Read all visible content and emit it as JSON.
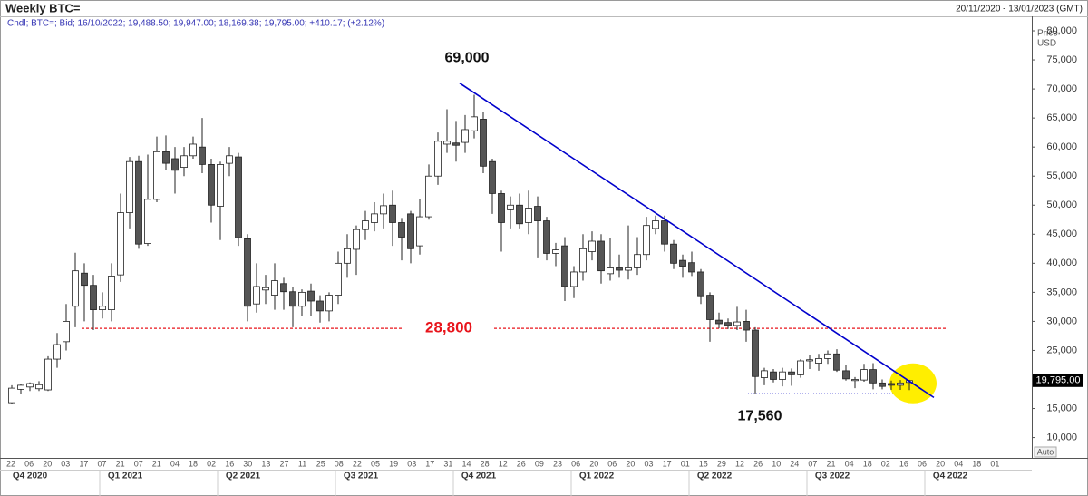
{
  "chart_data": {
    "type": "candlestick",
    "title": "Weekly BTC=",
    "date_range": "20/11/2020 - 13/01/2023 (GMT)",
    "subtitle": "Cndl; BTC=; Bid; 16/10/2022; 19,488.50; 19,947.00; 18,169.38; 19,795.00; +410.17; (+2.12%)",
    "y_axis_label": [
      "Price",
      "USD"
    ],
    "scale_mode": "Auto",
    "up_color": "#ffffff",
    "down_color": "#555555",
    "ylim": [
      6500,
      82500
    ],
    "yticks": [
      {
        "value": 10000,
        "label": "10,000"
      },
      {
        "value": 15000,
        "label": "15,000"
      },
      {
        "value": 20000,
        "label": "20,000"
      },
      {
        "value": 25000,
        "label": "25,000"
      },
      {
        "value": 30000,
        "label": "30,000"
      },
      {
        "value": 35000,
        "label": "35,000"
      },
      {
        "value": 40000,
        "label": "40,000"
      },
      {
        "value": 45000,
        "label": "45,000"
      },
      {
        "value": 50000,
        "label": "50,000"
      },
      {
        "value": 55000,
        "label": "55,000"
      },
      {
        "value": 60000,
        "label": "60,000"
      },
      {
        "value": 65000,
        "label": "65,000"
      },
      {
        "value": 70000,
        "label": "70,000"
      },
      {
        "value": 75000,
        "label": "75,000"
      },
      {
        "value": 80000,
        "label": "80,000"
      }
    ],
    "week_labels": [
      "22",
      "06",
      "20",
      "03",
      "17",
      "07",
      "21",
      "07",
      "21",
      "04",
      "18",
      "02",
      "16",
      "30",
      "13",
      "27",
      "11",
      "25",
      "08",
      "22",
      "05",
      "19",
      "03",
      "17",
      "31",
      "14",
      "28",
      "12",
      "26",
      "09",
      "23",
      "06",
      "20",
      "06",
      "20",
      "03",
      "17",
      "01",
      "15",
      "29",
      "12",
      "26",
      "10",
      "24",
      "07",
      "21",
      "04",
      "18",
      "02",
      "16",
      "06",
      "20",
      "04",
      "18",
      "01"
    ],
    "quarter_labels": [
      "Q4 2020",
      "Q1 2021",
      "Q2 2021",
      "Q3 2021",
      "Q4 2021",
      "Q1 2022",
      "Q2 2022",
      "Q3 2022",
      "Q4 2022"
    ],
    "open": [
      16000,
      18300,
      18700,
      18400,
      18200,
      23500,
      26500,
      32600,
      38300,
      36200,
      32000,
      32000,
      38000,
      48700,
      57500,
      43400,
      51000,
      59200,
      58000,
      56500,
      58500,
      60000,
      57000,
      49800,
      57200,
      58300,
      44200,
      33000,
      35400,
      34500,
      36500,
      35100,
      32600,
      35200,
      33500,
      31800,
      34500,
      40000,
      42400,
      45800,
      47000,
      48500,
      50000,
      47000,
      48500,
      43000,
      48000,
      55000,
      60500,
      60700,
      60800,
      62800,
      64800,
      57500,
      52000,
      49200,
      50000,
      47000,
      49800,
      47300,
      41700,
      43000,
      36000,
      38500,
      42000,
      43800,
      38200,
      39200,
      38800,
      39200,
      41500,
      46000,
      47300,
      43300,
      40500,
      40100,
      38500,
      34500,
      30200,
      29800,
      29300,
      30000,
      28500,
      20300,
      21300,
      20000,
      21300,
      20800,
      23200,
      22800,
      23600,
      24400,
      21500,
      19800,
      19900,
      21700,
      19400,
      19300,
      19000,
      19488.5
    ],
    "high": [
      19000,
      19300,
      19500,
      19700,
      24000,
      28000,
      33000,
      41800,
      40000,
      38000,
      35000,
      40000,
      52000,
      58300,
      58500,
      58700,
      61800,
      62000,
      60000,
      60000,
      61800,
      65000,
      58000,
      57500,
      60000,
      59000,
      45000,
      40000,
      38000,
      40000,
      37500,
      36000,
      35500,
      36500,
      34500,
      35000,
      42000,
      45000,
      46500,
      49000,
      50500,
      52000,
      52500,
      47800,
      49000,
      51000,
      57000,
      62500,
      66500,
      64500,
      65500,
      69000,
      66000,
      58000,
      52500,
      51500,
      52000,
      52500,
      51500,
      48000,
      43500,
      44500,
      39500,
      45000,
      45500,
      45000,
      44300,
      41500,
      46500,
      44500,
      48000,
      48200,
      48200,
      44000,
      41500,
      42000,
      39000,
      35000,
      31500,
      30500,
      32500,
      32000,
      29000,
      22000,
      21800,
      22000,
      21900,
      23500,
      24200,
      24400,
      25000,
      25200,
      22500,
      20400,
      22700,
      22800,
      20000,
      19800,
      19900,
      19947
    ],
    "low": [
      15700,
      17500,
      18000,
      18000,
      18000,
      22000,
      25000,
      29000,
      30000,
      28500,
      30500,
      30000,
      36800,
      46000,
      42500,
      43000,
      50500,
      56000,
      52000,
      55000,
      58000,
      55500,
      47000,
      44000,
      55000,
      43000,
      30000,
      31500,
      33000,
      32000,
      32000,
      29000,
      31000,
      31000,
      29800,
      30000,
      33000,
      37500,
      38000,
      44000,
      45500,
      46000,
      43000,
      40500,
      40000,
      41500,
      47500,
      53500,
      59000,
      57500,
      59000,
      61500,
      55500,
      48500,
      42000,
      46000,
      46000,
      45000,
      41000,
      40500,
      39500,
      33500,
      34000,
      37000,
      40500,
      36500,
      37000,
      37500,
      37200,
      38000,
      40500,
      45000,
      42000,
      39000,
      37500,
      37800,
      33000,
      26500,
      28800,
      28700,
      28500,
      26500,
      17560,
      19000,
      19500,
      18800,
      18900,
      20300,
      21800,
      21500,
      22700,
      21300,
      19800,
      18500,
      19600,
      18300,
      18300,
      18200,
      18200,
      18169.38
    ],
    "close": [
      18500,
      19000,
      19300,
      19100,
      23500,
      26000,
      30000,
      38700,
      36200,
      32000,
      32600,
      37800,
      48700,
      57500,
      43300,
      51000,
      59200,
      57200,
      56000,
      58500,
      60500,
      57000,
      50000,
      57000,
      58500,
      44400,
      32600,
      36000,
      35800,
      37000,
      35100,
      32600,
      35000,
      33500,
      31800,
      34500,
      40000,
      42500,
      45800,
      47300,
      48500,
      49900,
      47000,
      44500,
      42500,
      48000,
      55000,
      61000,
      61000,
      60300,
      63000,
      65200,
      56700,
      52000,
      47000,
      50000,
      46800,
      49500,
      47300,
      41700,
      42300,
      36000,
      38500,
      42500,
      43800,
      38700,
      39200,
      38800,
      39200,
      41500,
      46500,
      47300,
      43300,
      40000,
      39500,
      38500,
      34400,
      30300,
      29600,
      29300,
      29900,
      28500,
      20500,
      21500,
      20000,
      21300,
      20800,
      23200,
      23400,
      23600,
      24400,
      21600,
      20100,
      20000,
      21700,
      19400,
      18800,
      19000,
      19400,
      19795
    ],
    "last_price": {
      "value": 19795,
      "label": "19,795.00"
    },
    "trendline": {
      "color": "#0000cc",
      "from": [
        49.4,
        71000
      ],
      "to": [
        101.7,
        16900
      ]
    },
    "annotations": [
      {
        "value": 69000,
        "label": "69,000",
        "color": "#111111"
      },
      {
        "value": 28800,
        "label": "28,800",
        "color": "#e8141b"
      },
      {
        "value": 17560,
        "label": "17,560",
        "color": "#111111"
      }
    ]
  }
}
